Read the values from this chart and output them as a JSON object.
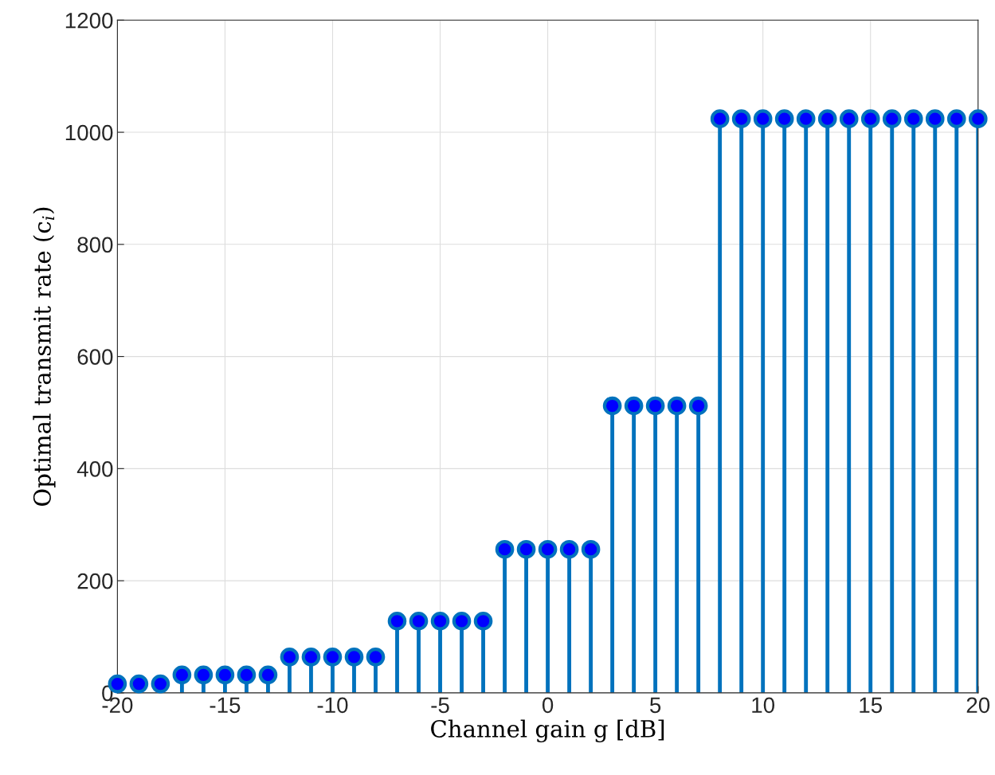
{
  "chart_data": {
    "type": "lollipop",
    "xlabel": "Channel gain g [dB]",
    "ylabel": "Optimal transmit rate (c$_{i}$)",
    "x": [
      -20,
      -19,
      -18,
      -17,
      -16,
      -15,
      -14,
      -13,
      -12,
      -11,
      -10,
      -9,
      -8,
      -7,
      -6,
      -5,
      -4,
      -3,
      -2,
      -1,
      0,
      1,
      2,
      3,
      4,
      5,
      6,
      7,
      8,
      9,
      10,
      11,
      12,
      13,
      14,
      15,
      16,
      17,
      18,
      19,
      20
    ],
    "series": [
      {
        "color": "#0072bd",
        "values": [
          16,
          16,
          16,
          32,
          32,
          32,
          32,
          32,
          64,
          64,
          64,
          64,
          64,
          128,
          128,
          128,
          128,
          128,
          256,
          256,
          256,
          256,
          256,
          512,
          512,
          512,
          512,
          512,
          1024,
          1024,
          1024,
          1024,
          1024,
          1024,
          1024,
          1024,
          1024,
          1024,
          1024,
          1024,
          1024
        ]
      }
    ],
    "xlim": [
      -20,
      20
    ],
    "xticks": [
      -20,
      -15,
      -10,
      -5,
      0,
      5,
      10,
      15,
      20
    ],
    "ylim": [
      0,
      1200
    ],
    "yticks": [
      0,
      200,
      400,
      600,
      800,
      1000,
      1200
    ],
    "grid": true,
    "marker": "circle"
  }
}
